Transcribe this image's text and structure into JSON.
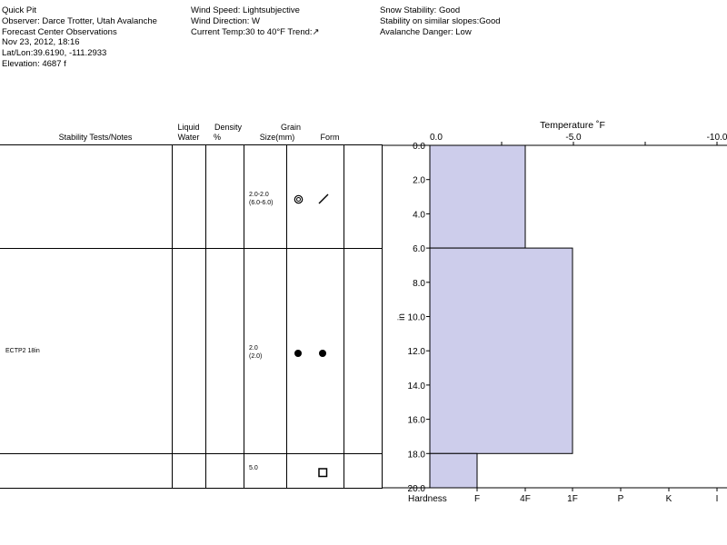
{
  "header": {
    "col1": [
      "Quick Pit",
      "Observer: Darce Trotter, Utah Avalanche",
      "Forecast Center Observations",
      "Nov 23, 2012, 18:16",
      "Lat/Lon:39.6190, -111.2933",
      "Elevation: 4687 f"
    ],
    "col2": [
      "Wind Speed: Lightsubjective",
      "Wind Direction: W",
      "Current Temp:30 to 40°F Trend:↗"
    ],
    "col3": [
      "Snow Stability: Good",
      "Stability on similar slopes:Good",
      "Avalanche Danger: Low"
    ]
  },
  "table": {
    "headers": {
      "stability": "Stability Tests/Notes",
      "liquid_1": "Liquid",
      "liquid_2": "Water",
      "density_1": "Density",
      "density_2": "%",
      "grain_1": "Grain",
      "grain_2": "Size(mm)",
      "form": "Form"
    },
    "layers": [
      {
        "top": 0,
        "bottom": 6,
        "note": "",
        "grain_size": "2.0-2.0",
        "grain_size2": "(6.0-6.0)",
        "forms": [
          "target-icon",
          "slash-icon"
        ]
      },
      {
        "top": 6,
        "bottom": 18,
        "note": "ECTP2 18in",
        "grain_size": "2.0",
        "grain_size2": "(2.0)",
        "forms": [
          "dot-icon",
          "dot-icon"
        ]
      },
      {
        "top": 18,
        "bottom": 20,
        "note": "",
        "grain_size": "5.0",
        "grain_size2": "",
        "forms": [
          "square-icon"
        ]
      }
    ]
  },
  "chart_data": {
    "type": "bar",
    "title": "Temperature ˚F",
    "temperature_ticks": [
      "0.0",
      "-5.0",
      "-10.0"
    ],
    "temperature_range": [
      0,
      -10
    ],
    "ylabel": "in",
    "yticks": [
      "0.0",
      "2.0",
      "4.0",
      "6.0",
      "8.0",
      "10.0",
      "12.0",
      "14.0",
      "16.0",
      "18.0",
      "20.0"
    ],
    "ylim": [
      0,
      20
    ],
    "hardness_label": "Hardness",
    "hardness_ticks": [
      "F",
      "4F",
      "1F",
      "P",
      "K",
      "I"
    ],
    "hardness_profile": [
      {
        "top": 0,
        "bottom": 6,
        "hardness": "4F"
      },
      {
        "top": 6,
        "bottom": 18,
        "hardness": "1F"
      },
      {
        "top": 18,
        "bottom": 20,
        "hardness": "F"
      }
    ],
    "fill_color": "#cdcdeb"
  }
}
